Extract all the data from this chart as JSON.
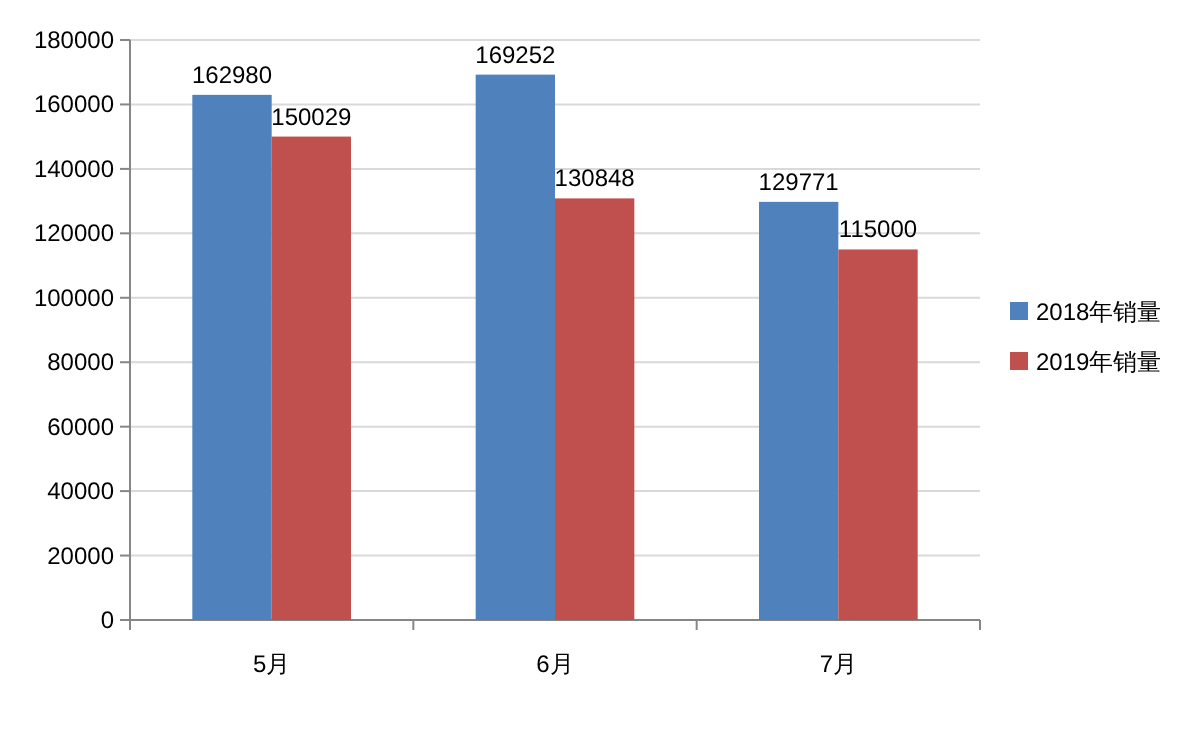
{
  "chart_data": {
    "type": "bar",
    "categories": [
      "5月",
      "6月",
      "7月"
    ],
    "series": [
      {
        "name": "2018年销量",
        "color": "#4f81bd",
        "values": [
          162980,
          169252,
          129771
        ]
      },
      {
        "name": "2019年销量",
        "color": "#c0504d",
        "values": [
          150029,
          130848,
          115000
        ]
      }
    ],
    "ylim": [
      0,
      180000
    ],
    "yticks": [
      0,
      20000,
      40000,
      60000,
      80000,
      100000,
      120000,
      140000,
      160000,
      180000
    ],
    "grid": "y",
    "legend": "right",
    "data_labels": true
  }
}
